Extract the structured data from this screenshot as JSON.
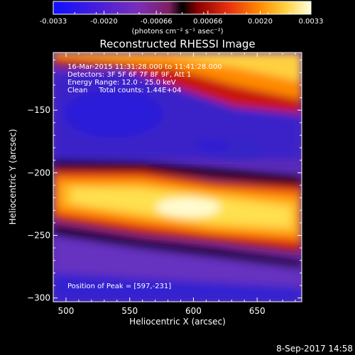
{
  "chart_data": {
    "type": "heatmap",
    "title": "Reconstructed RHESSI Image",
    "xlabel": "Heliocentric X (arcsec)",
    "ylabel": "Heliocentric Y (arcsec)",
    "xlim": [
      490,
      685
    ],
    "ylim": [
      -303,
      -104
    ],
    "x_ticks": [
      "500",
      "550",
      "600",
      "650"
    ],
    "x_tick_values": [
      500,
      550,
      600,
      650
    ],
    "y_ticks": [
      "-150",
      "-200",
      "-250",
      "-300"
    ],
    "y_tick_values": [
      -150,
      -200,
      -250,
      -300
    ],
    "colorbar": {
      "min": -0.0033,
      "max": 0.0033,
      "tick_labels": [
        "-0.0033",
        "-0.0020",
        "-0.00066",
        "0.00066",
        "0.0020",
        "0.0033"
      ],
      "units": "(photons cm⁻² s⁻¹ asec⁻²)"
    },
    "annotations": [
      "16-Mar-2015 11:31:28.000 to 11:41:28.000",
      "Detectors: 3F 5F 6F 7F 8F 9F, Att 1",
      "Energy Range: 12.0 - 25.0 keV",
      "Clean     Total counts: 1.44E+04"
    ],
    "peak_label": "Position of Peak = [597,-231]",
    "peak": [
      597,
      -231
    ],
    "colors": {
      "axes": "#ffffff",
      "background": "#000000"
    }
  },
  "footer": {
    "date": "8-Sep-2017 14:58"
  }
}
